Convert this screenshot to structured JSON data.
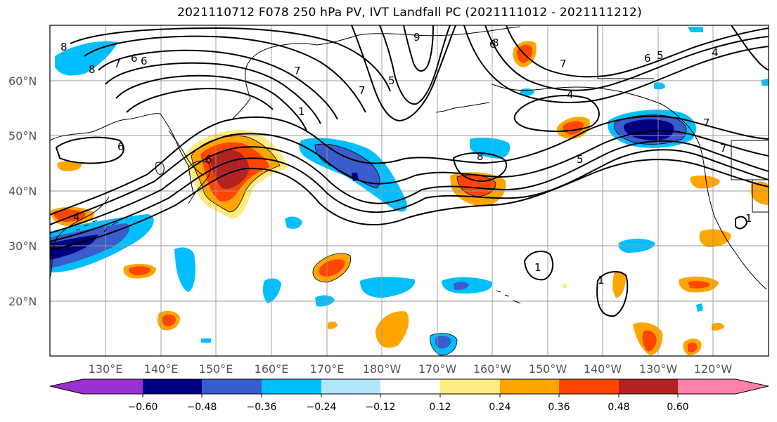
{
  "title": "2021110712 F078 250 hPa PV, IVT Landfall PC (2021111012 - 2021111212)",
  "lat_labels": [
    "60°N",
    "50°N",
    "40°N",
    "30°N",
    "20°N"
  ],
  "lon_labels": [
    "130°E",
    "140°E",
    "150°E",
    "160°E",
    "170°E",
    "180°W",
    "170°W",
    "160°W",
    "150°W",
    "140°W",
    "130°W",
    "120°W"
  ],
  "colorbar": {
    "ticks": [
      "−0.60",
      "−0.48",
      "−0.36",
      "−0.24",
      "−0.12",
      "0.12",
      "0.24",
      "0.36",
      "0.48",
      "0.60"
    ],
    "colors": {
      "under": "#9b30d0",
      "b1": "#000080",
      "b2": "#3a5ccc",
      "b3": "#00bfff",
      "b4": "#b3e5ff",
      "b5": "#ffffff",
      "b6": "#ffec80",
      "b7": "#ffa500",
      "b8": "#ff4500",
      "b9": "#b22222",
      "over": "#ff82ab"
    }
  },
  "contour_labels": [
    "8",
    "8",
    "6",
    "6",
    "7",
    "9",
    "7",
    "6",
    "8",
    "7",
    "6",
    "5",
    "7",
    "4",
    "6",
    "5",
    "4",
    "7",
    "8",
    "1",
    "1",
    "1",
    "5",
    "7",
    "1",
    "4",
    "6"
  ]
}
